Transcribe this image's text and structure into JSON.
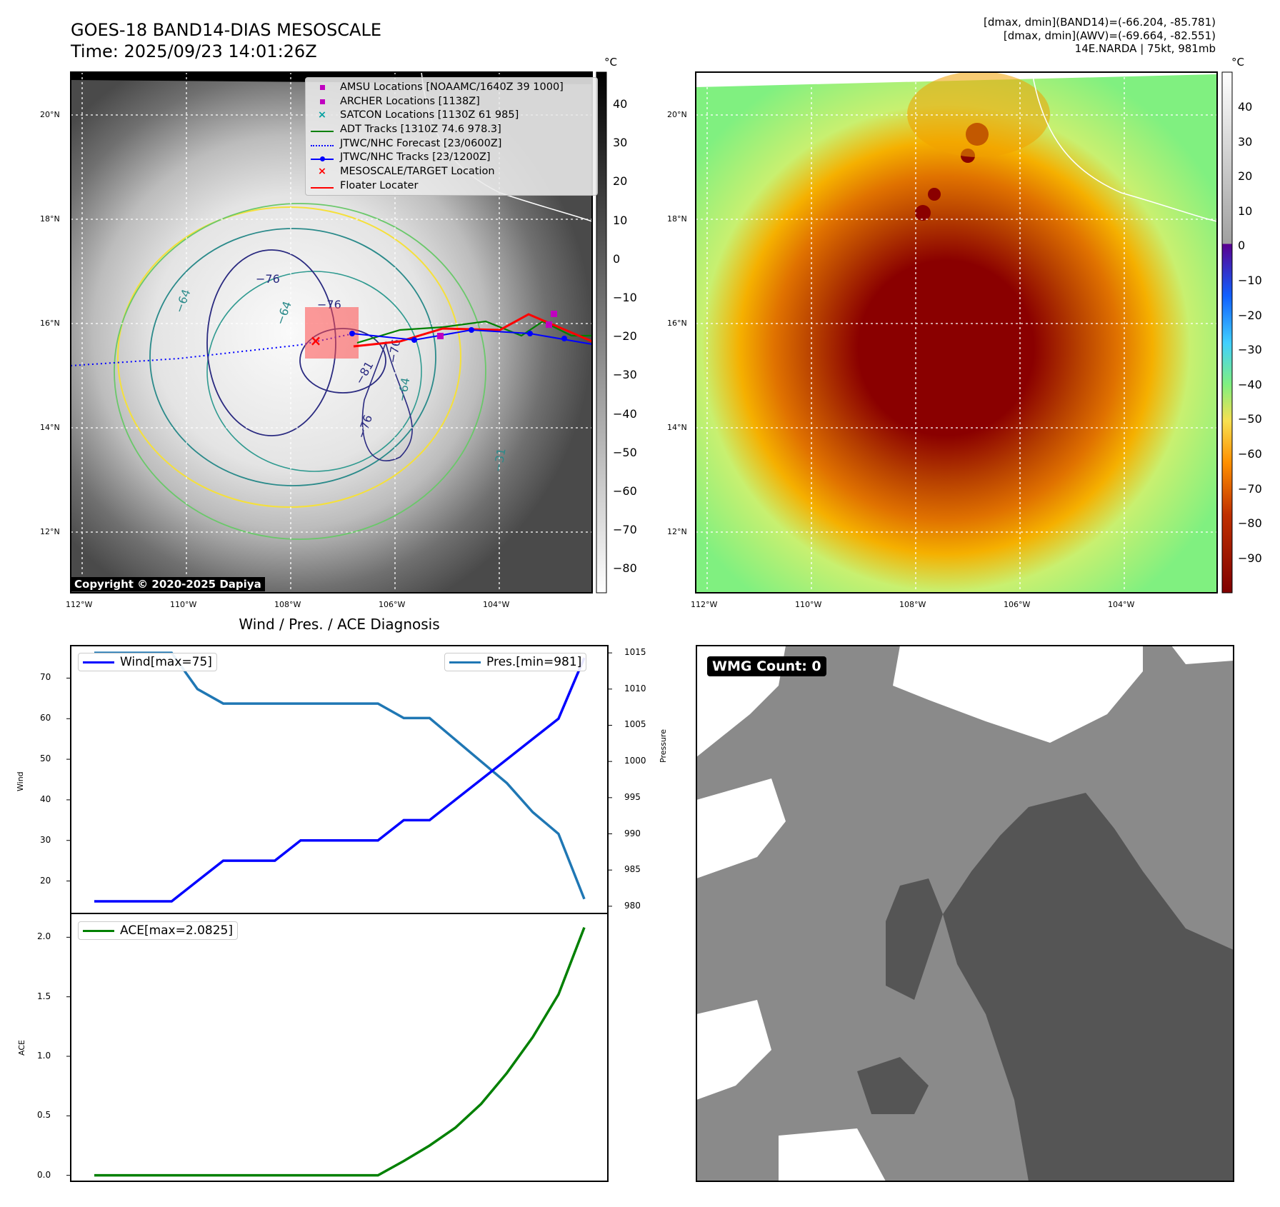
{
  "header": {
    "title_line1": "GOES-18 BAND14-DIAS MESOSCALE",
    "title_line2": "Time: 2025/09/23 14:01:26Z",
    "info_line1": "[dmax, dmin](BAND14)=(-66.204, -85.781)",
    "info_line2": "[dmax, dmin](AWV)=(-69.664, -82.551)",
    "info_line3": "14E.NARDA | 75kt, 981mb"
  },
  "maps": {
    "lat_labels": [
      "20°N",
      "18°N",
      "16°N",
      "14°N",
      "12°N"
    ],
    "lon_labels": [
      "112°W",
      "110°W",
      "108°W",
      "106°W",
      "104°W"
    ],
    "copyright": "Copyright © 2020-2025 Dapiya",
    "contour_labels": [
      "−76",
      "−64",
      "−76",
      "−64",
      "−81",
      "−76",
      "−64",
      "−76",
      "−31"
    ],
    "legend": [
      {
        "label": "AMSU Locations [NOAAMC/1640Z 39 1000]",
        "color": "#c000c0",
        "marker": "square"
      },
      {
        "label": "ARCHER Locations [1138Z]",
        "color": "#c000c0",
        "marker": "square"
      },
      {
        "label": "SATCON Locations [1130Z 61 985]",
        "color": "#00a0a0",
        "marker": "x"
      },
      {
        "label": "ADT Tracks [1310Z 74.6 978.3]",
        "color": "#008000",
        "marker": "line"
      },
      {
        "label": "JTWC/NHC Forecast [23/0600Z]",
        "color": "#0000ff",
        "marker": "dotted"
      },
      {
        "label": "JTWC/NHC Tracks [23/1200Z]",
        "color": "#0000ff",
        "marker": "line-dot"
      },
      {
        "label": "MESOSCALE/TARGET Location",
        "color": "#ff0000",
        "marker": "x"
      },
      {
        "label": "Floater Locater",
        "color": "#ff0000",
        "marker": "line"
      }
    ],
    "cbar1": {
      "unit": "°C",
      "ticks": [
        "40",
        "30",
        "20",
        "10",
        "0",
        "−10",
        "−20",
        "−30",
        "−40",
        "−50",
        "−60",
        "−70",
        "−80"
      ]
    },
    "cbar2": {
      "unit": "°C",
      "ticks": [
        "40",
        "30",
        "20",
        "10",
        "0",
        "−10",
        "−20",
        "−30",
        "−40",
        "−50",
        "−60",
        "−70",
        "−80",
        "−90"
      ]
    }
  },
  "chart_data": [
    {
      "type": "line",
      "title": "Wind / Pres. / ACE Diagnosis",
      "ylabel": "Wind",
      "ylabel_right": "Pressure",
      "x": [
        0,
        1,
        2,
        3,
        4,
        5,
        6,
        7,
        8,
        9,
        10,
        11,
        12,
        13,
        14,
        15,
        16,
        17,
        18,
        19
      ],
      "series": [
        {
          "name": "Wind[max=75]",
          "axis": "left",
          "color": "#0000ff",
          "values": [
            15,
            15,
            15,
            15,
            20,
            25,
            25,
            25,
            30,
            30,
            30,
            30,
            35,
            35,
            40,
            45,
            50,
            55,
            60,
            75
          ]
        },
        {
          "name": "Pres.[min=981]",
          "axis": "right",
          "color": "#1f77b4",
          "values": [
            1015,
            1015,
            1015,
            1015,
            1010,
            1008,
            1008,
            1008,
            1008,
            1008,
            1008,
            1008,
            1006,
            1006,
            1003,
            1000,
            997,
            993,
            990,
            981
          ]
        }
      ],
      "ylim": [
        12,
        78
      ],
      "ylim_right": [
        979,
        1016
      ],
      "yticks": [
        "70",
        "60",
        "50",
        "40",
        "30",
        "20"
      ],
      "yticks_right": [
        "1015",
        "1010",
        "1005",
        "1000",
        "995",
        "990",
        "985",
        "980"
      ]
    },
    {
      "type": "line",
      "ylabel": "ACE",
      "x": [
        0,
        1,
        2,
        3,
        4,
        5,
        6,
        7,
        8,
        9,
        10,
        11,
        12,
        13,
        14,
        15,
        16,
        17,
        18,
        19
      ],
      "series": [
        {
          "name": "ACE[max=2.0825]",
          "color": "#008000",
          "values": [
            0,
            0,
            0,
            0,
            0,
            0,
            0,
            0,
            0,
            0,
            0,
            0,
            0.12,
            0.25,
            0.4,
            0.6,
            0.86,
            1.16,
            1.52,
            2.0825
          ]
        }
      ],
      "ylim": [
        -0.05,
        2.2
      ],
      "yticks": [
        "2.0",
        "1.5",
        "1.0",
        "0.5",
        "0.0"
      ]
    }
  ],
  "wmg": {
    "label": "WMG Count: 0"
  }
}
